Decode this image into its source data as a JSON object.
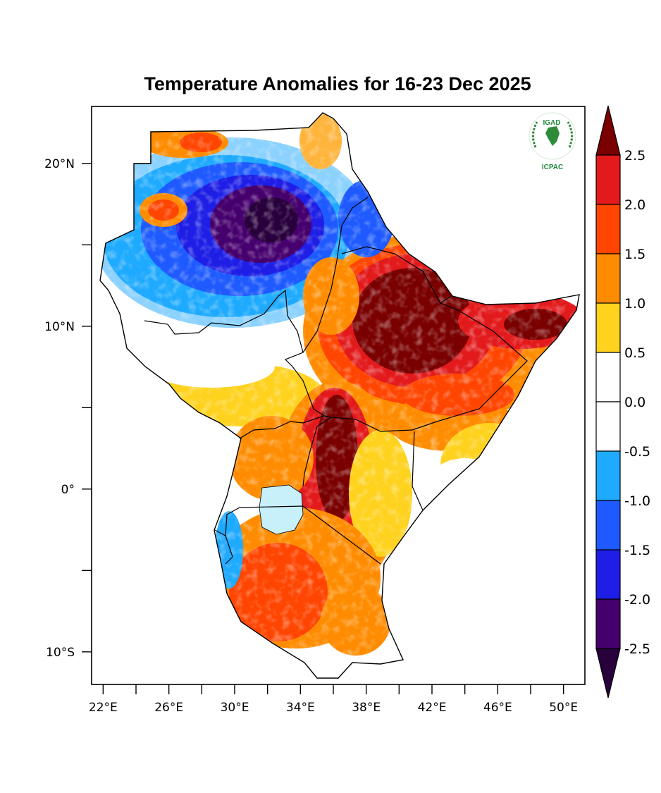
{
  "title": "Temperature Anomalies for 16-23 Dec 2025",
  "logo": {
    "acronym": "IGAD",
    "caption": "ICPAC",
    "color": "#1e8a3a"
  },
  "map": {
    "region": "Greater Horn of Africa",
    "lon_range": [
      21.3,
      51.3
    ],
    "lat_range": [
      -12,
      23.5
    ],
    "lat_ticks": [
      {
        "value": 20,
        "label": "20°N"
      },
      {
        "value": 15,
        "label": ""
      },
      {
        "value": 10,
        "label": "10°N"
      },
      {
        "value": 5,
        "label": ""
      },
      {
        "value": 0,
        "label": "0°"
      },
      {
        "value": -5,
        "label": ""
      },
      {
        "value": -10,
        "label": "10°S"
      }
    ],
    "lon_ticks": [
      {
        "value": 22,
        "label": "22°E"
      },
      {
        "value": 24,
        "label": ""
      },
      {
        "value": 26,
        "label": "26°E"
      },
      {
        "value": 28,
        "label": ""
      },
      {
        "value": 30,
        "label": "30°E"
      },
      {
        "value": 32,
        "label": ""
      },
      {
        "value": 34,
        "label": "34°E"
      },
      {
        "value": 36,
        "label": ""
      },
      {
        "value": 38,
        "label": "38°E"
      },
      {
        "value": 40,
        "label": ""
      },
      {
        "value": 42,
        "label": "42°E"
      },
      {
        "value": 44,
        "label": ""
      },
      {
        "value": 46,
        "label": "46°E"
      },
      {
        "value": 48,
        "label": ""
      },
      {
        "value": 50,
        "label": "50°E"
      }
    ],
    "lake_color": "#c8f0fa"
  },
  "colorbar": {
    "levels": [
      "2.5",
      "2.0",
      "1.5",
      "1.0",
      "0.5",
      "0.0",
      "-0.5",
      "-1.0",
      "-1.5",
      "-2.0",
      "-2.5"
    ],
    "colors_top_to_bottom": [
      "#7a0000",
      "#e31a1c",
      "#ff4500",
      "#ff8c00",
      "#ffd21e",
      "#ffffff",
      "#ffffff",
      "#1eaaff",
      "#1e5aff",
      "#1e1ee6",
      "#46006e",
      "#28003c"
    ]
  }
}
